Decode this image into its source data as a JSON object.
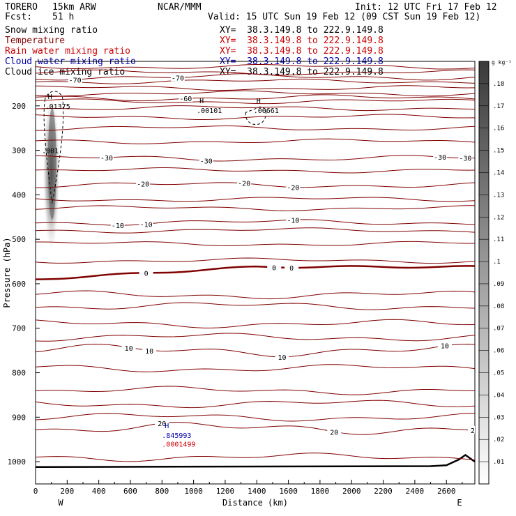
{
  "header": {
    "model": "TORERO",
    "resolution": "15km ARW",
    "org": "NCAR/MMM",
    "init": "Init: 12 UTC Fri 17 Feb 12",
    "fcst_label": "Fcst:",
    "fcst_value": "51 h",
    "valid": "Valid: 15 UTC Sun 19 Feb 12 (09 CST Sun 19 Feb 12)"
  },
  "fields": [
    {
      "name": "Snow mixing ratio",
      "xy": "XY=  38.3.149.8 to 222.9.149.8",
      "color": "#000000",
      "xy_color": "#000000"
    },
    {
      "name": "Temperature",
      "xy": "XY=  38.3.149.8 to 222.9.149.8",
      "color": "#800000",
      "xy_color": "#cc0000"
    },
    {
      "name": "Rain water mixing ratio",
      "xy": "XY=  38.3.149.8 to 222.9.149.8",
      "color": "#cc0000",
      "xy_color": "#cc0000"
    },
    {
      "name": "Cloud water mixing ratio",
      "xy": "XY=  38.3.149.8 to 222.9.149.8",
      "color": "#0000aa",
      "xy_color": "#0000aa"
    },
    {
      "name": "Cloud ice mixing ratio",
      "xy": "XY=  38.3.149.8 to 222.9.149.8",
      "color": "#000000",
      "xy_color": "#000000"
    }
  ],
  "colors": {
    "temperature": "#800000",
    "rain": "#cc0000",
    "cloud_water": "#0000aa",
    "ice": "#000000",
    "terrain": "#000000"
  },
  "chart_data": {
    "type": "contour cross-section",
    "xlabel": "Distance (km)",
    "ylabel": "Pressure (hPa)",
    "xlim": [
      0,
      2780
    ],
    "ylim": [
      1050,
      100
    ],
    "x_ticks": [
      0,
      200,
      400,
      600,
      800,
      1000,
      1200,
      1400,
      1600,
      1800,
      2000,
      2200,
      2400,
      2600
    ],
    "y_ticks": [
      200,
      300,
      400,
      500,
      600,
      700,
      800,
      900,
      1000
    ],
    "x_end_labels": {
      "left": "W",
      "right": "E"
    },
    "colorbar": {
      "unit": "g kg⁻¹",
      "ticks": [
        ".01",
        ".02",
        ".03",
        ".04",
        ".05",
        ".06",
        ".07",
        ".08",
        ".09",
        ".1",
        ".11",
        ".12",
        ".13",
        ".14",
        ".15",
        ".16",
        ".17",
        ".18"
      ]
    },
    "temperature_isotherms": [
      {
        "label": "-70",
        "p_at_left": 135,
        "label_x": [
          250,
          900
        ]
      },
      {
        "label": "-60",
        "p_at_left": 182,
        "label_x": [
          950
        ]
      },
      {
        "label": "-30",
        "p_at_left": 318,
        "label_x": [
          450,
          1080,
          2560,
          2720
        ]
      },
      {
        "label": "-20",
        "p_at_left": 378,
        "label_x": [
          680,
          1320,
          1630,
          2990
        ]
      },
      {
        "label": "-10",
        "p_at_left": 462,
        "label_x": [
          520,
          700,
          1630,
          2860
        ]
      },
      {
        "label": "0",
        "p_at_left": 590,
        "label_x": [
          700,
          1510,
          1620,
          2840
        ]
      },
      {
        "label": "10",
        "p_at_left": 750,
        "label_x": [
          590,
          720,
          1560,
          2590
        ]
      },
      {
        "label": "20",
        "p_at_left": 925,
        "label_x": [
          800,
          1890,
          2780
        ]
      }
    ],
    "maxima": [
      {
        "label": "H",
        "value": ".01375",
        "x_km": 60,
        "p": 200,
        "field": "Snow mixing ratio"
      },
      {
        "label": "H",
        "value": ".00101",
        "x_km": 1020,
        "p": 210,
        "field": "Cloud ice mixing ratio"
      },
      {
        "label": "H",
        "value": ".00661",
        "x_km": 1380,
        "p": 210,
        "field": "Cloud ice mixing ratio"
      },
      {
        "label": "H",
        "value": ".845993",
        "x_km": 800,
        "p": 940,
        "field": "Cloud water mixing ratio"
      },
      {
        "label": "",
        "value": ".0001499",
        "x_km": 800,
        "p": 960,
        "field": "Rain water mixing ratio"
      }
    ],
    "ice_contour_label": ".001",
    "terrain": [
      [
        0,
        1012
      ],
      [
        2500,
        1010
      ],
      [
        2600,
        1008
      ],
      [
        2680,
        995
      ],
      [
        2720,
        985
      ],
      [
        2780,
        1000
      ]
    ]
  }
}
